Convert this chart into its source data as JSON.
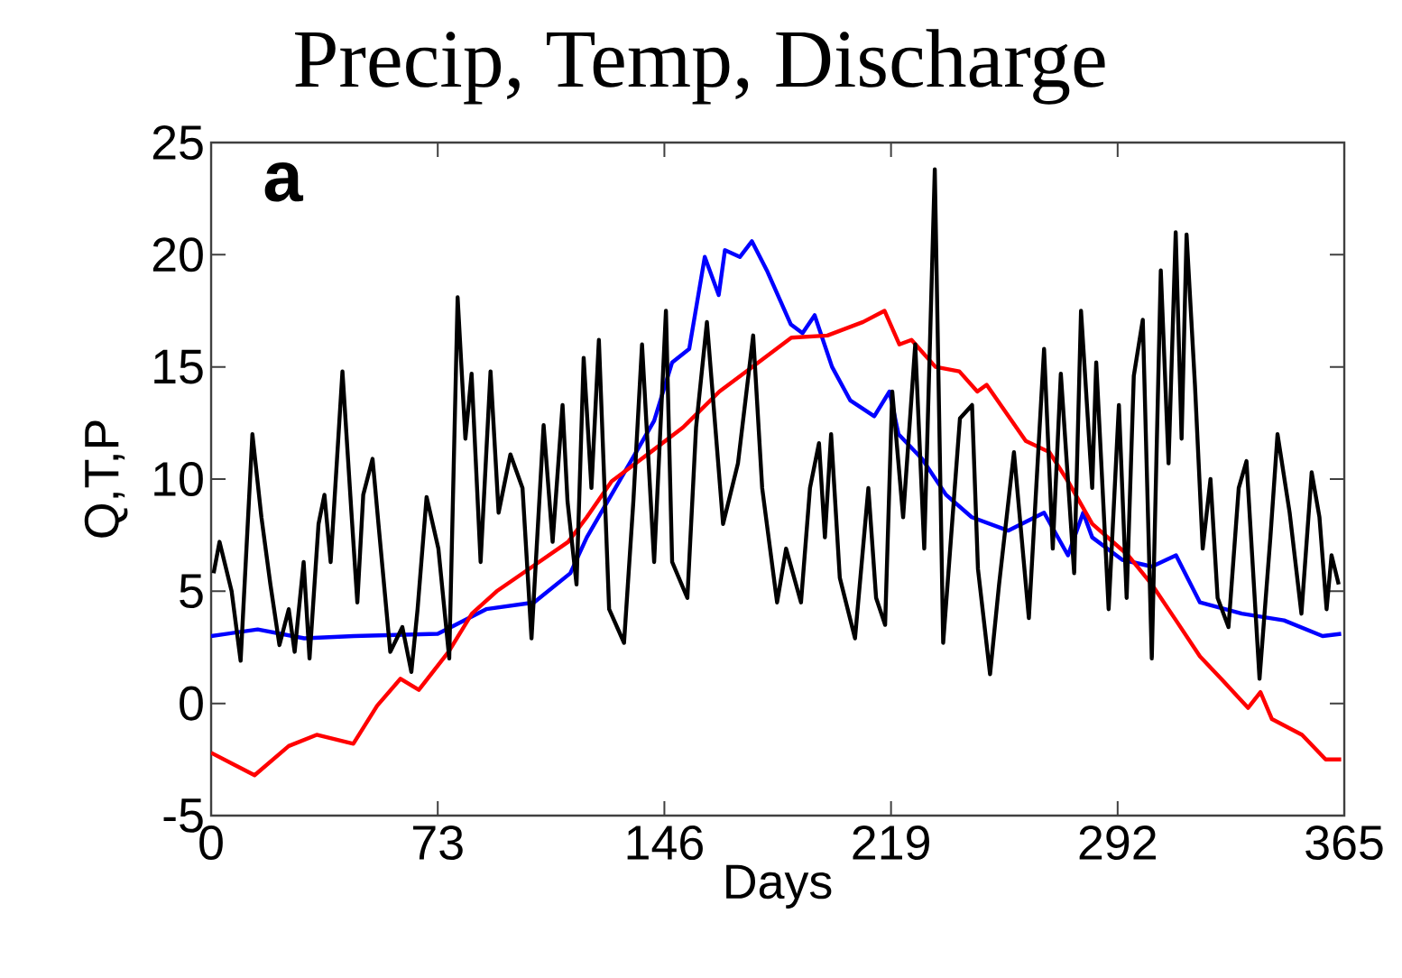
{
  "chart_data": {
    "type": "line",
    "title": "Precip, Temp, Discharge",
    "xlabel": "Days",
    "ylabel": "Q,T,P",
    "annotations": [
      "a"
    ],
    "xlim": [
      0,
      365
    ],
    "ylim": [
      -5,
      25
    ],
    "xticks": [
      0,
      73,
      146,
      219,
      292,
      365
    ],
    "yticks": [
      -5,
      0,
      5,
      10,
      15,
      20,
      25
    ],
    "grid": false,
    "series": [
      {
        "color": "#0000ff",
        "x": [
          0,
          15,
          30,
          46,
          73,
          88.6,
          104,
          115.7,
          121,
          136.9,
          142.7,
          148.5,
          154,
          159,
          163.5,
          165.5,
          170.3,
          174.2,
          179,
          186.7,
          190.5,
          194.4,
          200,
          205.9,
          213.6,
          218.5,
          221.4,
          229,
          236.7,
          245,
          256.7,
          268.3,
          276,
          280.9,
          283.8,
          293.5,
          303,
          310.8,
          318.5,
          332,
          345.6,
          358,
          364
        ],
        "values": [
          3.0,
          3.3,
          2.9,
          3.0,
          3.1,
          4.2,
          4.5,
          5.8,
          7.4,
          11.2,
          12.6,
          15.2,
          15.8,
          19.9,
          18.2,
          20.2,
          19.9,
          20.6,
          19.3,
          16.9,
          16.5,
          17.3,
          15.0,
          13.5,
          12.8,
          13.9,
          12.0,
          10.9,
          9.3,
          8.3,
          7.7,
          8.5,
          6.6,
          8.5,
          7.4,
          6.4,
          6.1,
          6.6,
          4.5,
          4.0,
          3.7,
          3.0,
          3.1
        ]
      },
      {
        "color": "#ff0000",
        "x": [
          0,
          14,
          25,
          34,
          45.8,
          53.5,
          61,
          66.9,
          76.5,
          84,
          92,
          103.5,
          115,
          121,
          129,
          140.6,
          152,
          163.7,
          175.3,
          186.9,
          198.5,
          210,
          216.9,
          221.7,
          225.6,
          233.3,
          241,
          246.8,
          249.8,
          262.4,
          270,
          276,
          283.8,
          295.4,
          303,
          310.8,
          318.5,
          326,
          334,
          338,
          341.7,
          351.4,
          359,
          364
        ],
        "values": [
          -2.2,
          -3.2,
          -1.9,
          -1.4,
          -1.8,
          -0.1,
          1.1,
          0.6,
          2.3,
          4.0,
          5.0,
          6.1,
          7.2,
          8.3,
          9.9,
          11.1,
          12.3,
          13.9,
          15.1,
          16.3,
          16.4,
          17.0,
          17.5,
          16.0,
          16.2,
          15.0,
          14.8,
          13.9,
          14.2,
          11.7,
          11.2,
          9.9,
          8.0,
          6.6,
          5.3,
          3.7,
          2.1,
          1.0,
          -0.2,
          0.5,
          -0.7,
          -1.4,
          -2.5,
          -2.5
        ]
      },
      {
        "color": "#000000",
        "x": [
          0.8,
          2.7,
          6.6,
          9.5,
          13.3,
          16.2,
          19.1,
          22,
          25,
          26.9,
          29.8,
          31.7,
          34.6,
          36.5,
          38.5,
          42.3,
          45.2,
          47.1,
          49,
          52,
          53.9,
          57.7,
          61.6,
          64.5,
          66.5,
          69.4,
          73.2,
          76.7,
          79.4,
          81.9,
          83.9,
          86.8,
          90,
          92.6,
          96.4,
          100.3,
          103.2,
          107.1,
          110,
          113.2,
          114.8,
          117.7,
          120,
          122.5,
          124.9,
          128.2,
          133,
          136,
          138.8,
          142.7,
          146.5,
          148.5,
          153.4,
          156.2,
          159.7,
          164.9,
          169.7,
          174.6,
          177.5,
          182.3,
          185.2,
          190,
          192.9,
          195.8,
          197.7,
          199.7,
          202.5,
          207.4,
          211.7,
          214.2,
          217.1,
          219.4,
          222.9,
          226.8,
          229.7,
          233.1,
          235.8,
          241.2,
          245.1,
          247,
          250.9,
          253.8,
          258.6,
          263.4,
          268.3,
          271.1,
          273.7,
          278,
          280.2,
          283.8,
          285.1,
          289.1,
          292.4,
          294.9,
          297.2,
          300.1,
          303,
          305.9,
          308.4,
          310.7,
          312.6,
          314.2,
          316.9,
          319.4,
          321.9,
          324.2,
          327.7,
          331,
          333.5,
          337.7,
          341.2,
          343.5,
          347.4,
          351.2,
          354.5,
          357,
          359.3,
          360.9,
          363.2
        ],
        "values": [
          5.8,
          7.2,
          5.0,
          1.9,
          12.0,
          8.3,
          5.3,
          2.6,
          4.2,
          2.3,
          6.3,
          2.0,
          8.0,
          9.3,
          6.3,
          14.8,
          8.5,
          4.5,
          9.3,
          10.9,
          8.0,
          2.3,
          3.4,
          1.4,
          4.2,
          9.2,
          6.9,
          2.0,
          18.1,
          11.8,
          14.7,
          6.3,
          14.8,
          8.5,
          11.1,
          9.6,
          2.9,
          12.4,
          7.2,
          13.3,
          9.0,
          5.3,
          15.4,
          9.6,
          16.2,
          4.2,
          2.7,
          9.0,
          16.0,
          6.3,
          17.5,
          6.3,
          4.7,
          12.3,
          17.0,
          8.0,
          10.7,
          16.4,
          9.6,
          4.5,
          6.9,
          4.5,
          9.6,
          11.6,
          7.4,
          12.0,
          5.6,
          2.9,
          9.6,
          4.7,
          3.5,
          13.9,
          8.3,
          16.0,
          6.9,
          23.8,
          2.7,
          12.7,
          13.3,
          6.0,
          1.3,
          5.3,
          11.2,
          3.8,
          15.8,
          6.9,
          14.7,
          5.8,
          17.5,
          9.6,
          15.2,
          4.2,
          13.3,
          4.7,
          14.6,
          17.1,
          2.0,
          19.3,
          10.7,
          21.0,
          11.8,
          20.9,
          14.2,
          6.9,
          10.0,
          4.7,
          3.4,
          9.6,
          10.8,
          1.1,
          7.4,
          12.0,
          8.5,
          4.0,
          10.3,
          8.3,
          4.2,
          6.6,
          5.3
        ]
      }
    ]
  }
}
